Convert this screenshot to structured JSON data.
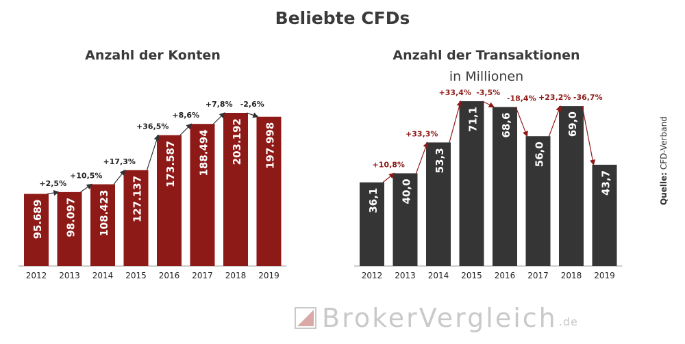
{
  "title": "Beliebte CFDs",
  "source_label": "Quelle:",
  "source_value": "CFD-Verband",
  "logo": {
    "text": "BrokerVergleich",
    "suffix": ".de"
  },
  "colors": {
    "accounts_bar": "#8e1a17",
    "transactions_bar": "#353535",
    "positive_change": "#8e1a17"
  },
  "chart_data": [
    {
      "type": "bar",
      "title": "Anzahl der Konten",
      "subtitle": "",
      "categories": [
        "2012",
        "2013",
        "2014",
        "2015",
        "2016",
        "2017",
        "2018",
        "2019"
      ],
      "values": [
        95689,
        98097,
        108423,
        127137,
        173587,
        188494,
        203192,
        197998
      ],
      "value_labels": [
        "95.689",
        "98.097",
        "108.423",
        "127.137",
        "173.587",
        "188.494",
        "203.192",
        "197.998"
      ],
      "changes": [
        "+2,5%",
        "+10,5%",
        "+17,3%",
        "+36,5%",
        "+8,6%",
        "+7,8%",
        "-2,6%"
      ],
      "ylim": [
        0,
        203192
      ],
      "grid": false
    },
    {
      "type": "bar",
      "title": "Anzahl der Transaktionen",
      "subtitle": "in Millionen",
      "categories": [
        "2012",
        "2013",
        "2014",
        "2015",
        "2016",
        "2017",
        "2018",
        "2019"
      ],
      "values": [
        36.1,
        40.0,
        53.3,
        71.1,
        68.6,
        56.0,
        69.0,
        43.7
      ],
      "value_labels": [
        "36,1",
        "40,0",
        "53,3",
        "71,1",
        "68,6",
        "56,0",
        "69,0",
        "43,7"
      ],
      "changes": [
        "+10,8%",
        "+33,3%",
        "+33,4%",
        "-3,5%",
        "-18,4%",
        "+23,2%",
        "-36,7%"
      ],
      "ylim": [
        0,
        71.1
      ],
      "grid": false
    }
  ]
}
